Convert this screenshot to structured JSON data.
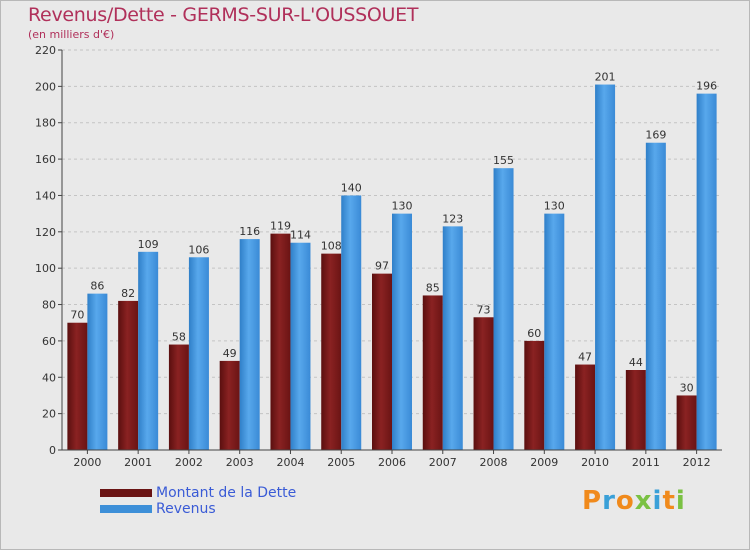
{
  "header": {
    "title": "Revenus/Dette - GERMS-SUR-L'OUSSOUET",
    "subtitle": "(en milliers d'€)"
  },
  "legend": {
    "items": [
      {
        "label": "Montant de la Dette",
        "color": "#7a1a1a"
      },
      {
        "label": "Revenus",
        "color": "#3d8fd8"
      }
    ]
  },
  "logo": {
    "text": "Proxiti",
    "letters": [
      "P",
      "r",
      "o",
      "x",
      "i",
      "t",
      "i"
    ],
    "colors": [
      "#f08a1c",
      "#3aa0d8",
      "#f08a1c",
      "#7ac143",
      "#3aa0d8",
      "#f08a1c",
      "#7ac143"
    ]
  },
  "chart_data": {
    "type": "bar",
    "title": "Revenus/Dette - GERMS-SUR-L'OUSSOUET",
    "subtitle": "(en milliers d'€)",
    "xlabel": "",
    "ylabel": "",
    "ylim": [
      0,
      220
    ],
    "yticks": [
      0,
      20,
      40,
      60,
      80,
      100,
      120,
      140,
      160,
      180,
      200,
      220
    ],
    "grid": true,
    "legend_position": "bottom-left",
    "categories": [
      "2000",
      "2001",
      "2002",
      "2003",
      "2004",
      "2005",
      "2006",
      "2007",
      "2008",
      "2009",
      "2010",
      "2011",
      "2012"
    ],
    "series": [
      {
        "name": "Montant de la Dette",
        "color": "#7a1a1a",
        "values": [
          70,
          82,
          58,
          49,
          119,
          108,
          97,
          85,
          73,
          60,
          47,
          44,
          30
        ]
      },
      {
        "name": "Revenus",
        "color": "#3d8fd8",
        "values": [
          86,
          109,
          106,
          116,
          114,
          140,
          130,
          123,
          155,
          130,
          201,
          169,
          196
        ]
      }
    ]
  }
}
